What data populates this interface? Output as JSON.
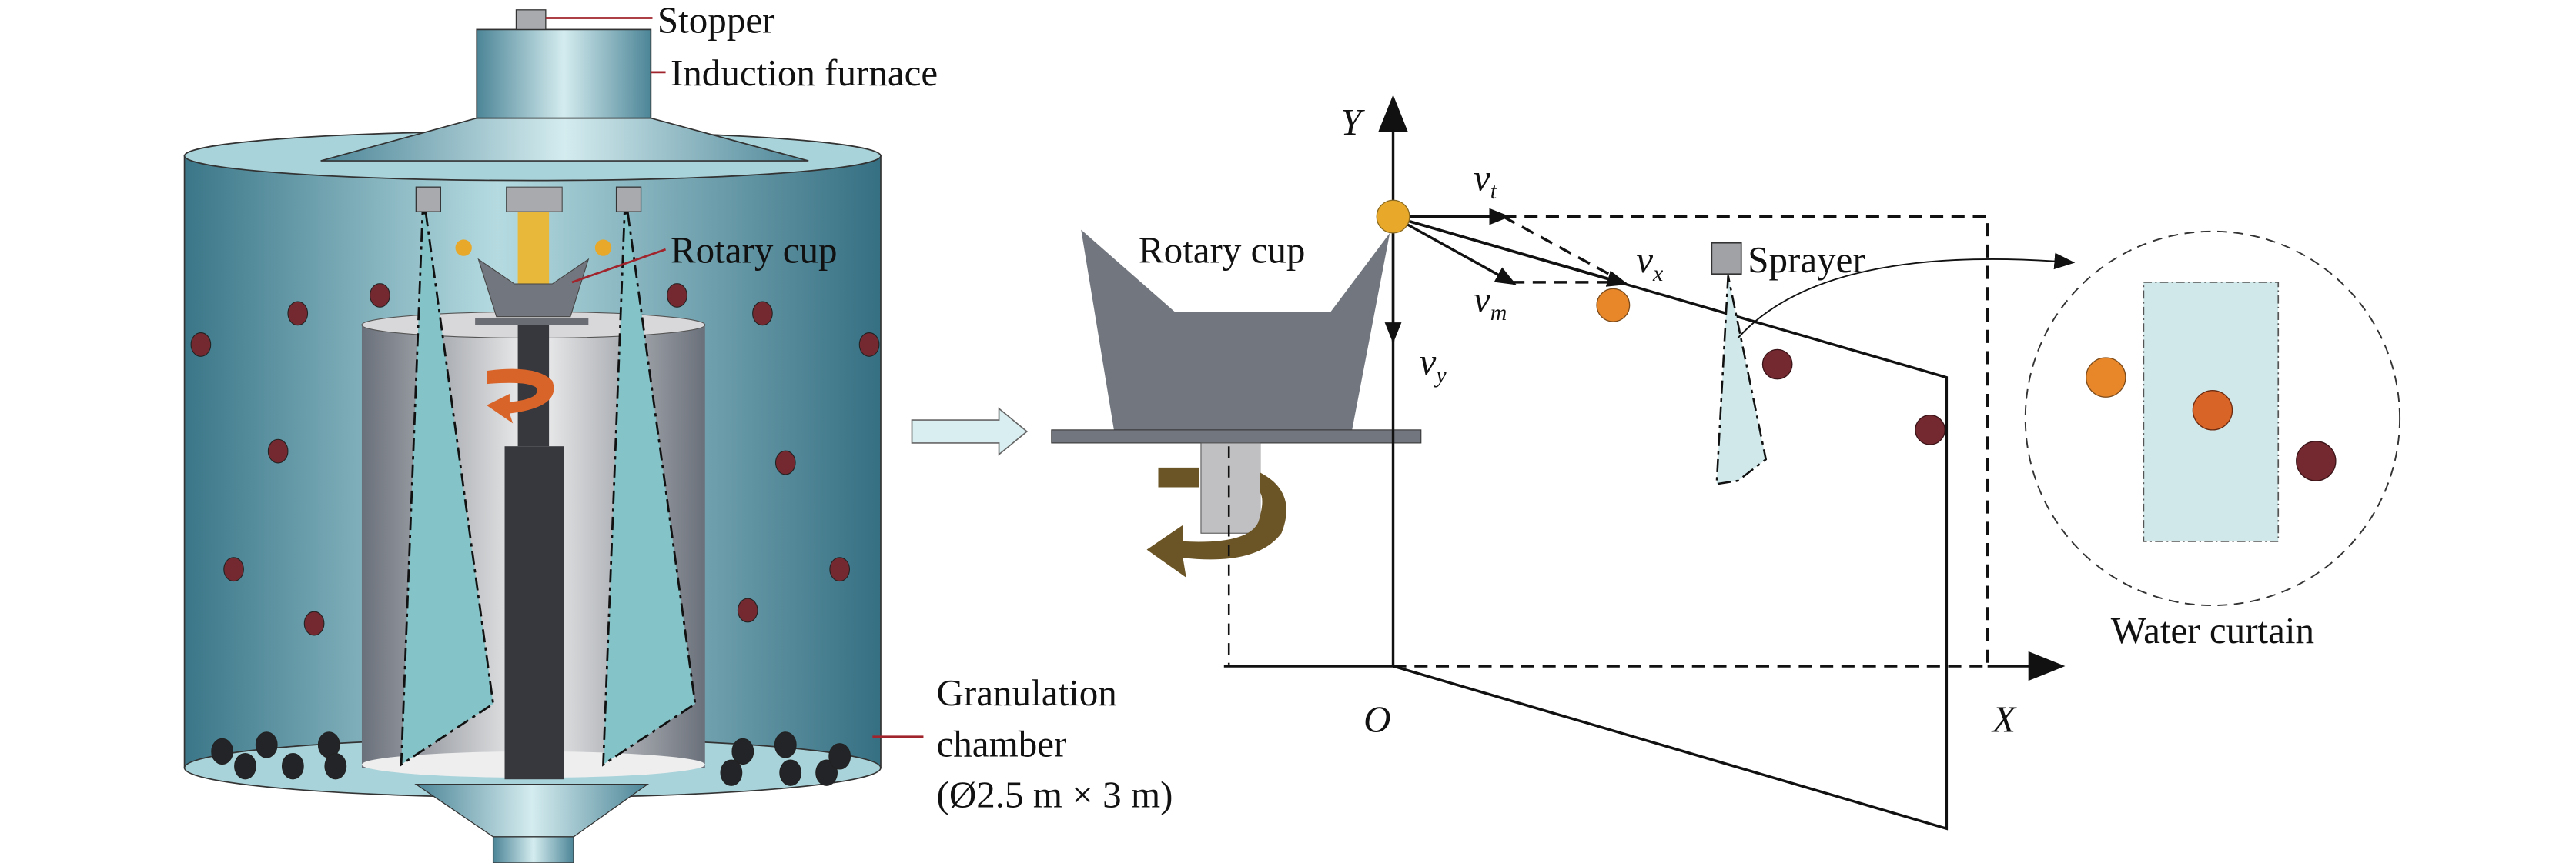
{
  "left_apparatus": {
    "labels": {
      "stopper": "Stopper",
      "furnace": "Induction furnace",
      "rotary_cup": "Rotary cup",
      "chamber_line1": "Granulation",
      "chamber_line2": "chamber",
      "chamber_line3": "(Ø2.5 m × 3 m)"
    }
  },
  "right_schematic": {
    "rotary_cup": "Rotary cup",
    "sprayer": "Sprayer",
    "water_curtain": "Water curtain",
    "axes": {
      "y": "Y",
      "x": "X",
      "origin": "O"
    },
    "vectors": {
      "vt": {
        "base": "v",
        "sub": "t"
      },
      "vx": {
        "base": "v",
        "sub": "x"
      },
      "vm": {
        "base": "v",
        "sub": "m"
      },
      "vy": {
        "base": "v",
        "sub": "y"
      }
    }
  },
  "colors": {
    "chamber_edge": "#2f6b7e",
    "chamber_center": "#b9dfe4",
    "water_curtain": "#84c3c8",
    "leader_line": "#a0242c",
    "molten_droplet": "#e8a82a",
    "hot_particle": "#e8862a",
    "cooling_particle": "#d86428",
    "solid_particle": "#742830",
    "settled_particle": "#222428"
  }
}
